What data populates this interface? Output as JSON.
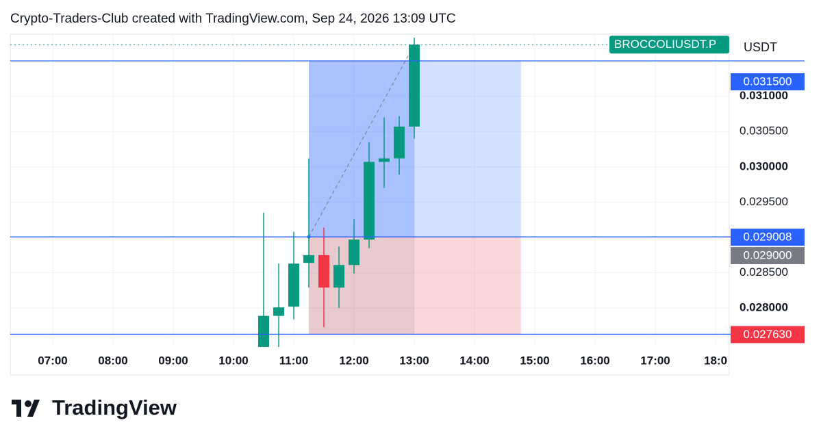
{
  "header": "Crypto-Traders-Club created with TradingView.com, Sep 24, 2026 13:09 UTC",
  "footer_brand": "TradingView",
  "chart_data": {
    "type": "candlestick",
    "symbol": "BROCCOLIUSDT.P",
    "currency": "USDT",
    "x": [
      10.5,
      10.75,
      11.0,
      11.25,
      11.5,
      11.75,
      12.0,
      12.25,
      12.5,
      12.75,
      13.0
    ],
    "open": [
      0.02745,
      0.02789,
      0.02802,
      0.02864,
      0.02875,
      0.02829,
      0.02861,
      0.02897,
      0.03007,
      0.03012,
      0.03057
    ],
    "high": [
      0.02935,
      0.02863,
      0.02908,
      0.03012,
      0.02914,
      0.02887,
      0.02926,
      0.03035,
      0.0307,
      0.03072,
      0.03183
    ],
    "low": [
      0.0274,
      0.0274,
      0.02784,
      0.02829,
      0.02773,
      0.028,
      0.02849,
      0.02885,
      0.0297,
      0.02989,
      0.0304
    ],
    "close": [
      0.02789,
      0.02801,
      0.02863,
      0.02875,
      0.02829,
      0.02861,
      0.02897,
      0.03007,
      0.03012,
      0.03057,
      0.03173
    ],
    "up_color": "#089981",
    "down_color": "#f23645",
    "xlim": [
      6.295,
      18.227
    ],
    "ylim": [
      0.02745,
      0.031878
    ],
    "xticks": [
      {
        "value": 7,
        "label": "07:00"
      },
      {
        "value": 8,
        "label": "08:00"
      },
      {
        "value": 9,
        "label": "09:00"
      },
      {
        "value": 10,
        "label": "10:00"
      },
      {
        "value": 11,
        "label": "11:00"
      },
      {
        "value": 12,
        "label": "12:00"
      },
      {
        "value": 13,
        "label": "13:00"
      },
      {
        "value": 14,
        "label": "14:00"
      },
      {
        "value": 15,
        "label": "15:00"
      },
      {
        "value": 16,
        "label": "16:00"
      },
      {
        "value": 17,
        "label": "17:00"
      },
      {
        "value": 18,
        "label": "18:0"
      }
    ],
    "yticks": [
      {
        "value": 0.028,
        "label": "0.028000",
        "bold": true
      },
      {
        "value": 0.0285,
        "label": "0.028500"
      },
      {
        "value": 0.029,
        "label": "0.029000",
        "highlight": true
      },
      {
        "value": 0.0295,
        "label": "0.029500"
      },
      {
        "value": 0.03,
        "label": "0.030000",
        "bold": true
      },
      {
        "value": 0.0305,
        "label": "0.030500"
      },
      {
        "value": 0.031,
        "label": "0.031000",
        "bold": true
      }
    ],
    "grid": true,
    "position": {
      "start": 11.25,
      "end": 14.77,
      "entry": 0.029008,
      "target": 0.0315,
      "stop": 0.02763,
      "entry_label": "0.029008",
      "target_label": "0.031500",
      "stop_label": "0.027630"
    }
  }
}
